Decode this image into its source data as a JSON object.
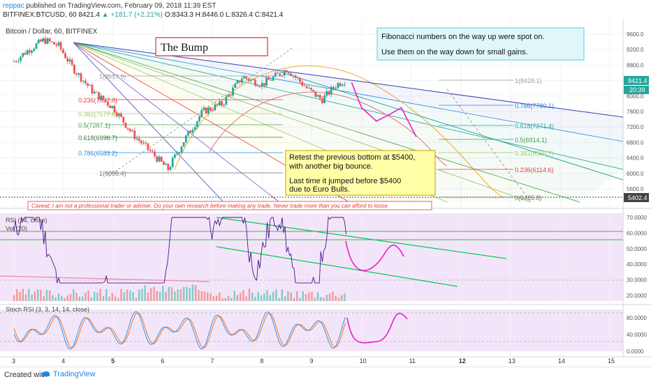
{
  "header": {
    "user": "reppac",
    "published_text": "published on TradingView.com, February 09, 2018 11:39 EST",
    "symbol": "BITFINEX:BTCUSD, 60",
    "last": "8421.4",
    "change": "+181.7 (+2.21%)",
    "ohlc": "O:8343.3 H:8446.0 L:8326.4 C:8421.4"
  },
  "main_pane": {
    "title": "Bitcoin / Dollar, 60, BITFINEX",
    "bump_label": "The Bump",
    "note_top_line1": "Fibonacci numbers on the way up were spot on.",
    "note_top_line2": "Use them on the way down for small gains.",
    "note_mid_line1": "Retest the previous bottom at $5400,",
    "note_mid_line2": "with another big bounce.",
    "note_mid_line3": "Last time it jumped before $5400",
    "note_mid_line4": "due to Euro Bulls.",
    "caveat": "Caveat: I am not a professional trader or adviser. Do your own research before making any trade. Never trade more than you can afford to loose.",
    "price_badge": "8421.4",
    "time_badge": "20:39",
    "low_badge": "5402.4",
    "fib_up": [
      {
        "label": "1(8517.9)",
        "color": "#9e9e9e"
      },
      {
        "label": "0.236(7937.0)",
        "color": "#e53935"
      },
      {
        "label": "0.382(7577.6)",
        "color": "#9ccc65"
      },
      {
        "label": "0.5(7287.1)",
        "color": "#43a047"
      },
      {
        "label": "0.618(6996.7)",
        "color": "#2e7d32"
      },
      {
        "label": "0.786(6583.2)",
        "color": "#1e88e5"
      },
      {
        "label": "1(6056.4)",
        "color": "#757575"
      }
    ],
    "fib_down": [
      {
        "label": "1(8428.1)",
        "color": "#9e9e9e"
      },
      {
        "label": "0.786(7780.1)",
        "color": "#1e88e5"
      },
      {
        "label": "0.618(7271.4)",
        "color": "#26a69a"
      },
      {
        "label": "0.5(6914.1)",
        "color": "#43a047"
      },
      {
        "label": "0.382(6556.7)",
        "color": "#9ccc65"
      },
      {
        "label": "0.236(6114.6)",
        "color": "#e53935"
      },
      {
        "label": "0(5485.8)",
        "color": "#757575"
      }
    ]
  },
  "rsi_pane": {
    "title": "RSI (14, close)",
    "vol_title": "Vol (20)"
  },
  "stoch_pane": {
    "title": "Stoch RSI (3, 3, 14, 14, close)"
  },
  "footer": {
    "created": "Created with",
    "brand": "TradingView"
  },
  "chart_data": {
    "type": "line",
    "symbol": "BTCUSD",
    "interval": "60",
    "price_axis": [
      "9600.0",
      "9200.0",
      "8800.0",
      "8400.0",
      "8000.0",
      "7600.0",
      "7200.0",
      "6800.0",
      "6400.0",
      "6000.0",
      "5600.0"
    ],
    "rsi_axis": [
      "70.0000",
      "60.0000",
      "50.0000",
      "40.0000",
      "30.0000",
      "20.0000"
    ],
    "stoch_axis": [
      "80.0000",
      "40.0000",
      "0.0000"
    ],
    "x_ticks": [
      "3",
      "4",
      "5",
      "6",
      "7",
      "8",
      "9",
      "10",
      "11",
      "12",
      "13",
      "14",
      "15"
    ],
    "ylim": [
      5300,
      9800
    ],
    "price_path": [
      {
        "x": 3.0,
        "y": 8900
      },
      {
        "x": 3.3,
        "y": 9200
      },
      {
        "x": 3.6,
        "y": 9450
      },
      {
        "x": 3.9,
        "y": 9300
      },
      {
        "x": 4.2,
        "y": 8700
      },
      {
        "x": 4.6,
        "y": 8100
      },
      {
        "x": 5.0,
        "y": 7700
      },
      {
        "x": 5.4,
        "y": 7000
      },
      {
        "x": 5.8,
        "y": 6500
      },
      {
        "x": 6.1,
        "y": 6100
      },
      {
        "x": 6.4,
        "y": 6800
      },
      {
        "x": 6.8,
        "y": 7600
      },
      {
        "x": 7.2,
        "y": 7800
      },
      {
        "x": 7.6,
        "y": 8500
      },
      {
        "x": 8.0,
        "y": 8300
      },
      {
        "x": 8.5,
        "y": 8700
      },
      {
        "x": 8.9,
        "y": 8200
      },
      {
        "x": 9.2,
        "y": 7900
      },
      {
        "x": 9.5,
        "y": 8300
      },
      {
        "x": 9.7,
        "y": 8421
      }
    ],
    "projection_path": [
      {
        "x": 9.8,
        "y": 8350
      },
      {
        "x": 10.0,
        "y": 7700
      },
      {
        "x": 10.3,
        "y": 7350
      },
      {
        "x": 10.6,
        "y": 7550
      },
      {
        "x": 10.8,
        "y": 7700
      },
      {
        "x": 11.1,
        "y": 6950
      }
    ]
  }
}
